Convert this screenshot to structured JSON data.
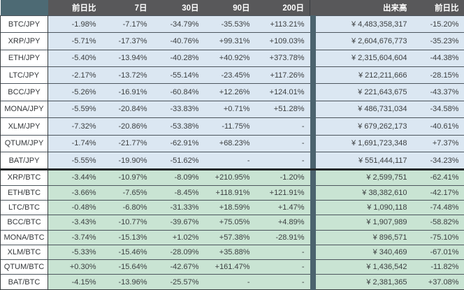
{
  "colors": {
    "header_bg": "#58585a",
    "header_text": "#ffffff",
    "corner_bg": "#4d6a74",
    "separator_bg": "#4b636e",
    "jpy_row_bg": "#dbe7f2",
    "btc_row_bg": "#c9e4d3",
    "pair_cell_bg": "#ffffff",
    "row_border": "#4d565e",
    "text": "#3c3f41"
  },
  "table": {
    "columns": [
      "",
      "前日比",
      "7日",
      "30日",
      "90日",
      "200日",
      "出来高",
      "前日比"
    ],
    "sections": [
      {
        "name": "jpy",
        "rows": [
          [
            "BTC/JPY",
            "-1.98%",
            "-7.17%",
            "-34.79%",
            "-35.53%",
            "+113.21%",
            "¥ 4,483,358,317",
            "-15.20%"
          ],
          [
            "XRP/JPY",
            "-5.71%",
            "-17.37%",
            "-40.76%",
            "+99.31%",
            "+109.03%",
            "¥ 2,604,676,773",
            "-35.23%"
          ],
          [
            "ETH/JPY",
            "-5.40%",
            "-13.94%",
            "-40.28%",
            "+40.92%",
            "+373.78%",
            "¥ 2,315,604,604",
            "-44.38%"
          ],
          [
            "LTC/JPY",
            "-2.17%",
            "-13.72%",
            "-55.14%",
            "-23.45%",
            "+117.26%",
            "¥ 212,211,666",
            "-28.15%"
          ],
          [
            "BCC/JPY",
            "-5.26%",
            "-16.91%",
            "-60.84%",
            "+12.26%",
            "+124.01%",
            "¥ 221,643,675",
            "-43.37%"
          ],
          [
            "MONA/JPY",
            "-5.59%",
            "-20.84%",
            "-33.83%",
            "+0.71%",
            "+51.28%",
            "¥ 486,731,034",
            "-34.58%"
          ],
          [
            "XLM/JPY",
            "-7.32%",
            "-20.86%",
            "-53.38%",
            "-11.75%",
            "-",
            "¥ 679,262,173",
            "-40.61%"
          ],
          [
            "QTUM/JPY",
            "-1.74%",
            "-21.77%",
            "-62.91%",
            "+68.23%",
            "-",
            "¥ 1,691,723,348",
            "+7.37%"
          ],
          [
            "BAT/JPY",
            "-5.55%",
            "-19.90%",
            "-51.62%",
            "-",
            "-",
            "¥ 551,444,117",
            "-34.23%"
          ]
        ]
      },
      {
        "name": "btc",
        "rows": [
          [
            "XRP/BTC",
            "-3.44%",
            "-10.97%",
            "-8.09%",
            "+210.95%",
            "-1.20%",
            "¥ 2,599,751",
            "-62.41%"
          ],
          [
            "ETH/BTC",
            "-3.66%",
            "-7.65%",
            "-8.45%",
            "+118.91%",
            "+121.91%",
            "¥ 38,382,610",
            "-42.17%"
          ],
          [
            "LTC/BTC",
            "-0.48%",
            "-6.80%",
            "-31.33%",
            "+18.59%",
            "+1.47%",
            "¥ 1,090,118",
            "-74.48%"
          ],
          [
            "BCC/BTC",
            "-3.43%",
            "-10.77%",
            "-39.67%",
            "+75.05%",
            "+4.89%",
            "¥ 1,907,989",
            "-58.82%"
          ],
          [
            "MONA/BTC",
            "-3.74%",
            "-15.13%",
            "+1.02%",
            "+57.38%",
            "-28.91%",
            "¥ 896,571",
            "-75.10%"
          ],
          [
            "XLM/BTC",
            "-5.33%",
            "-15.46%",
            "-28.09%",
            "+35.88%",
            "-",
            "¥ 340,469",
            "-67.01%"
          ],
          [
            "QTUM/BTC",
            "+0.30%",
            "-15.64%",
            "-42.67%",
            "+161.47%",
            "-",
            "¥ 1,436,542",
            "-11.82%"
          ],
          [
            "BAT/BTC",
            "-4.15%",
            "-13.96%",
            "-25.57%",
            "-",
            "-",
            "¥ 2,381,365",
            "+37.08%"
          ]
        ]
      }
    ]
  }
}
